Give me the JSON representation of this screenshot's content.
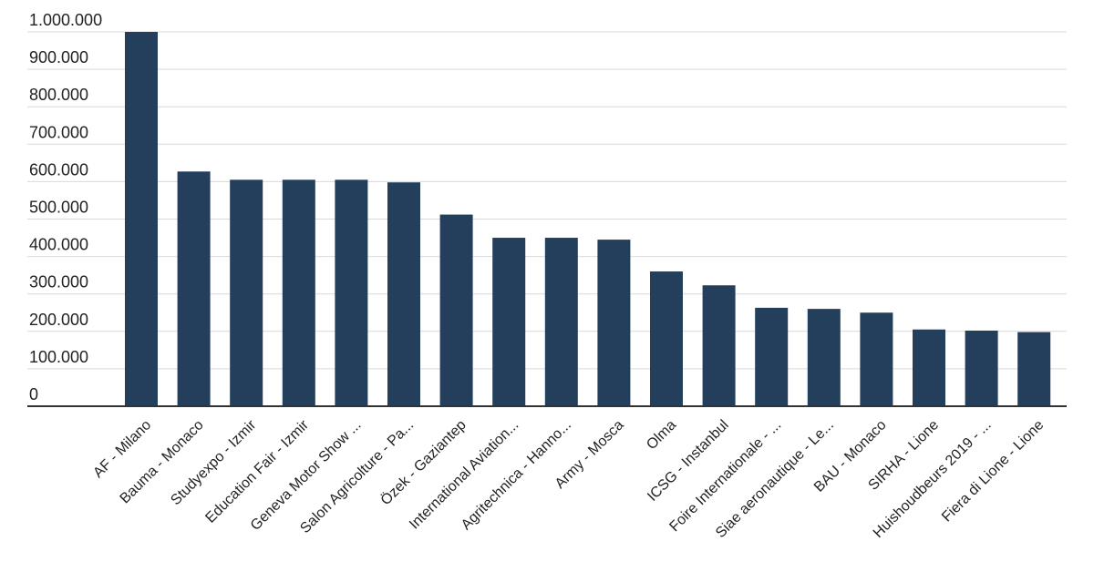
{
  "chart_data": {
    "type": "bar",
    "title": "",
    "xlabel": "",
    "ylabel": "",
    "categories": [
      "AF - Milano",
      "Bauma - Monaco",
      "Studyexpo - Izmir",
      "Education Fair - Izmir",
      "Geneva Motor Show ...",
      "Salon Agricolture - Pa...",
      "Özek - Gaziantep",
      "International Aviation...",
      "Agritechnica - Hanno...",
      "Army - Mosca",
      "Olma",
      "ICSG - Instanbul",
      "Foire Internationale - ...",
      "Siae aeronautique - Le...",
      "BAU - Monaco",
      "SIRHA - Lione",
      "Huishoudbeurs 2019 - ...",
      "Fiera di Lione - Lione"
    ],
    "values": [
      1000000,
      627000,
      605000,
      605000,
      605000,
      598000,
      512000,
      450000,
      450000,
      445000,
      360000,
      323000,
      263000,
      260000,
      250000,
      205000,
      202000,
      198000
    ],
    "ylim": [
      0,
      1000000
    ],
    "yticks": [
      {
        "value": 0,
        "label": "0"
      },
      {
        "value": 100000,
        "label": "100.000"
      },
      {
        "value": 200000,
        "label": "200.000"
      },
      {
        "value": 300000,
        "label": "300.000"
      },
      {
        "value": 400000,
        "label": "400.000"
      },
      {
        "value": 500000,
        "label": "500.000"
      },
      {
        "value": 600000,
        "label": "600.000"
      },
      {
        "value": 700000,
        "label": "700.000"
      },
      {
        "value": 800000,
        "label": "800.000"
      },
      {
        "value": 900000,
        "label": "900.000"
      },
      {
        "value": 1000000,
        "label": "1.000.000"
      }
    ],
    "grid": true,
    "legend": "none",
    "bar_color": "#243f5c",
    "grid_color": "#d9d9d9"
  }
}
